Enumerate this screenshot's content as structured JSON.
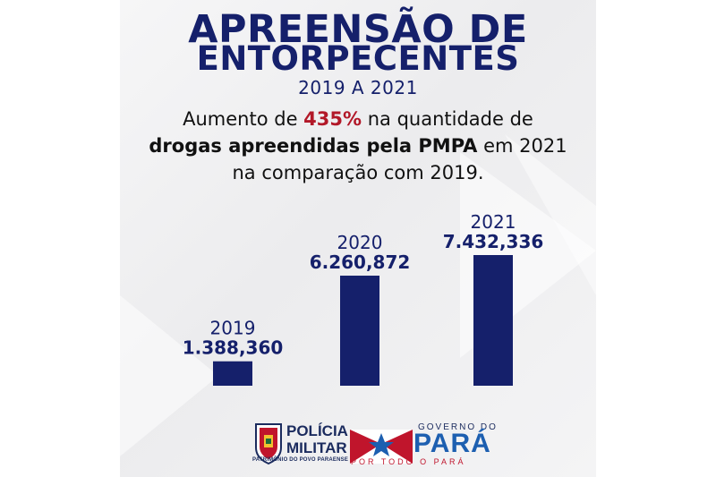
{
  "title": {
    "line1": "APREENSÃO DE",
    "line2": "ENTORPECENTES",
    "period": "2019 A 2021"
  },
  "headline": {
    "p1": "Aumento de ",
    "highlight": "435%",
    "p2": " na quantidade de",
    "bold": "drogas apreendidas pela PMPA",
    "p3": " em 2021",
    "line3": "na comparação com 2019."
  },
  "colors": {
    "navy": "#15206b",
    "highlight_red": "#b21828",
    "para_blue": "#1d5fb0"
  },
  "chart_data": {
    "type": "bar",
    "categories": [
      "2019",
      "2020",
      "2021"
    ],
    "values": [
      1388360,
      6260872,
      7432336
    ],
    "value_labels": [
      "1.388,360",
      "6.260,872",
      "7.432,336"
    ],
    "title": "",
    "xlabel": "",
    "ylabel": "",
    "grid": false,
    "legend": "none"
  },
  "footer": {
    "pm_line1": "POLÍCIA",
    "pm_line2": "MILITAR",
    "pm_motto": "PATRIMÔNIO DO POVO PARAENSE",
    "gov_label": "GOVERNO DO",
    "gov_name": "PARÁ",
    "gov_slogan": "POR TODO O PARÁ"
  }
}
